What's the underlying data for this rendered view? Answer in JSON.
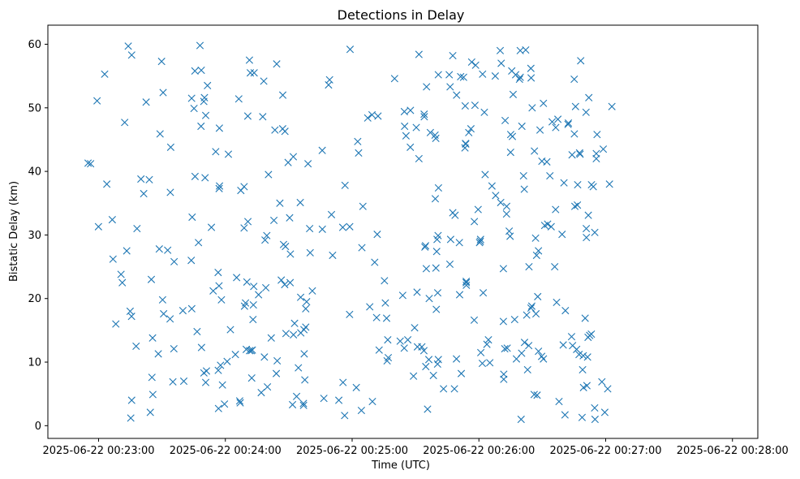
{
  "chart_data": {
    "type": "scatter",
    "title": "Detections in Delay",
    "xlabel": "Time (UTC)",
    "ylabel": "Bistatic Delay (km)",
    "marker": "x",
    "color": "#1f77b4",
    "xlim_minutes": [
      22.6,
      28.2
    ],
    "ylim": [
      -2,
      63
    ],
    "x_ticks": [
      {
        "value": 23,
        "label": "2025-06-22 00:23:00"
      },
      {
        "value": 24,
        "label": "2025-06-22 00:24:00"
      },
      {
        "value": 25,
        "label": "2025-06-22 00:25:00"
      },
      {
        "value": 26,
        "label": "2025-06-22 00:26:00"
      },
      {
        "value": 27,
        "label": "2025-06-22 00:27:00"
      },
      {
        "value": 28,
        "label": "2025-06-22 00:28:00"
      }
    ],
    "y_ticks": [
      0,
      10,
      20,
      30,
      40,
      50,
      60
    ],
    "x_unit_note": "x values are minutes past 00:00 UTC on 2025-06-22",
    "points": [
      [
        22.917,
        41.3
      ],
      [
        22.937,
        41.2
      ],
      [
        22.988,
        51.1
      ],
      [
        22.999,
        31.3
      ],
      [
        23.048,
        55.3
      ],
      [
        23.065,
        38.0
      ],
      [
        23.108,
        32.4
      ],
      [
        23.114,
        26.2
      ],
      [
        23.136,
        16.0
      ],
      [
        23.177,
        23.8
      ],
      [
        23.187,
        22.5
      ],
      [
        23.206,
        47.7
      ],
      [
        23.222,
        27.5
      ],
      [
        23.249,
        18.0
      ],
      [
        23.26,
        17.2
      ],
      [
        23.234,
        59.7
      ],
      [
        23.261,
        58.3
      ],
      [
        23.261,
        4.0
      ],
      [
        23.254,
        1.2
      ],
      [
        23.303,
        31.0
      ],
      [
        23.296,
        12.5
      ],
      [
        23.334,
        38.8
      ],
      [
        23.356,
        36.5
      ],
      [
        23.375,
        50.9
      ],
      [
        23.4,
        38.7
      ],
      [
        23.416,
        23.0
      ],
      [
        23.408,
        2.1
      ],
      [
        23.426,
        13.8
      ],
      [
        23.421,
        7.6
      ],
      [
        23.428,
        4.9
      ],
      [
        23.471,
        11.3
      ],
      [
        23.485,
        45.9
      ],
      [
        23.479,
        27.8
      ],
      [
        23.505,
        19.8
      ],
      [
        23.509,
        52.4
      ],
      [
        23.513,
        17.6
      ],
      [
        23.497,
        57.3
      ],
      [
        23.545,
        27.6
      ],
      [
        23.564,
        16.8
      ],
      [
        23.569,
        43.8
      ],
      [
        23.566,
        36.7
      ],
      [
        23.596,
        25.8
      ],
      [
        23.594,
        12.1
      ],
      [
        23.586,
        6.9
      ],
      [
        23.665,
        18.1
      ],
      [
        23.672,
        7.0
      ],
      [
        23.734,
        51.5
      ],
      [
        23.735,
        18.4
      ],
      [
        23.738,
        32.8
      ],
      [
        23.731,
        26.0
      ],
      [
        23.76,
        55.8
      ],
      [
        23.753,
        49.9
      ],
      [
        23.761,
        39.2
      ],
      [
        23.788,
        28.8
      ],
      [
        23.777,
        14.8
      ],
      [
        23.81,
        55.9
      ],
      [
        23.808,
        47.1
      ],
      [
        23.812,
        12.3
      ],
      [
        23.8,
        59.8
      ],
      [
        23.835,
        51.6
      ],
      [
        23.83,
        51.0
      ],
      [
        23.845,
        48.8
      ],
      [
        23.84,
        39.0
      ],
      [
        23.831,
        8.3
      ],
      [
        23.851,
        8.6
      ],
      [
        23.859,
        53.5
      ],
      [
        23.845,
        6.8
      ],
      [
        23.89,
        31.2
      ],
      [
        23.904,
        21.2
      ],
      [
        23.924,
        43.1
      ],
      [
        23.943,
        24.1
      ],
      [
        23.95,
        22.0
      ],
      [
        23.953,
        46.8
      ],
      [
        23.951,
        37.3
      ],
      [
        23.954,
        37.7
      ],
      [
        23.944,
        8.7
      ],
      [
        23.946,
        2.7
      ],
      [
        23.962,
        9.5
      ],
      [
        23.969,
        19.8
      ],
      [
        23.977,
        6.4
      ],
      [
        23.993,
        3.4
      ],
      [
        24.014,
        10.1
      ],
      [
        24.024,
        42.7
      ],
      [
        24.04,
        15.1
      ],
      [
        24.079,
        11.2
      ],
      [
        24.089,
        23.3
      ],
      [
        24.106,
        51.4
      ],
      [
        24.122,
        37.0
      ],
      [
        24.113,
        3.9
      ],
      [
        24.117,
        3.6
      ],
      [
        24.148,
        37.6
      ],
      [
        24.148,
        31.1
      ],
      [
        24.159,
        19.3
      ],
      [
        24.151,
        18.8
      ],
      [
        24.17,
        22.6
      ],
      [
        24.165,
        12.0
      ],
      [
        24.177,
        48.7
      ],
      [
        24.178,
        32.1
      ],
      [
        24.197,
        55.5
      ],
      [
        24.19,
        57.5
      ],
      [
        24.191,
        11.8
      ],
      [
        24.204,
        11.8
      ],
      [
        24.208,
        7.5
      ],
      [
        24.227,
        55.5
      ],
      [
        24.224,
        21.9
      ],
      [
        24.221,
        19.0
      ],
      [
        24.218,
        16.7
      ],
      [
        24.213,
        11.9
      ],
      [
        24.262,
        20.6
      ],
      [
        24.283,
        5.2
      ],
      [
        24.295,
        48.6
      ],
      [
        24.303,
        54.2
      ],
      [
        24.313,
        29.2
      ],
      [
        24.308,
        10.8
      ],
      [
        24.327,
        29.9
      ],
      [
        24.319,
        21.7
      ],
      [
        24.332,
        6.1
      ],
      [
        24.34,
        39.5
      ],
      [
        24.362,
        13.8
      ],
      [
        24.391,
        46.5
      ],
      [
        24.383,
        32.3
      ],
      [
        24.405,
        56.9
      ],
      [
        24.409,
        10.2
      ],
      [
        24.402,
        8.2
      ],
      [
        24.43,
        35.0
      ],
      [
        24.441,
        22.9
      ],
      [
        24.453,
        52.0
      ],
      [
        24.452,
        46.7
      ],
      [
        24.47,
        46.3
      ],
      [
        24.459,
        28.5
      ],
      [
        24.474,
        28.2
      ],
      [
        24.468,
        22.2
      ],
      [
        24.478,
        14.5
      ],
      [
        24.495,
        41.4
      ],
      [
        24.507,
        32.7
      ],
      [
        24.511,
        22.5
      ],
      [
        24.513,
        27.0
      ],
      [
        24.536,
        42.3
      ],
      [
        24.537,
        14.3
      ],
      [
        24.53,
        3.3
      ],
      [
        24.546,
        16.1
      ],
      [
        24.562,
        4.6
      ],
      [
        24.576,
        9.1
      ],
      [
        24.591,
        35.1
      ],
      [
        24.594,
        20.2
      ],
      [
        24.595,
        14.6
      ],
      [
        24.616,
        3.5
      ],
      [
        24.617,
        3.2
      ],
      [
        24.634,
        15.5
      ],
      [
        24.62,
        15.1
      ],
      [
        24.634,
        18.4
      ],
      [
        24.622,
        11.3
      ],
      [
        24.627,
        7.2
      ],
      [
        24.641,
        19.5
      ],
      [
        24.652,
        41.2
      ],
      [
        24.665,
        31.0
      ],
      [
        24.669,
        27.2
      ],
      [
        24.686,
        21.2
      ],
      [
        24.764,
        43.3
      ],
      [
        24.765,
        30.9
      ],
      [
        24.777,
        4.3
      ],
      [
        24.822,
        54.4
      ],
      [
        24.814,
        53.6
      ],
      [
        24.837,
        33.2
      ],
      [
        24.846,
        26.8
      ],
      [
        24.895,
        4.0
      ],
      [
        24.926,
        31.2
      ],
      [
        24.928,
        6.8
      ],
      [
        24.941,
        1.6
      ],
      [
        24.944,
        37.8
      ],
      [
        24.984,
        59.2
      ],
      [
        24.981,
        31.3
      ],
      [
        24.98,
        17.5
      ],
      [
        25.033,
        6.0
      ],
      [
        25.044,
        44.7
      ],
      [
        25.051,
        42.9
      ],
      [
        25.085,
        34.5
      ],
      [
        25.077,
        28.0
      ],
      [
        25.073,
        2.4
      ],
      [
        25.123,
        48.4
      ],
      [
        25.139,
        18.7
      ],
      [
        25.157,
        48.9
      ],
      [
        25.16,
        3.8
      ],
      [
        25.178,
        25.7
      ],
      [
        25.193,
        17.0
      ],
      [
        25.198,
        30.1
      ],
      [
        25.204,
        48.7
      ],
      [
        25.213,
        11.9
      ],
      [
        25.255,
        22.8
      ],
      [
        25.262,
        19.3
      ],
      [
        25.272,
        16.9
      ],
      [
        25.281,
        13.5
      ],
      [
        25.285,
        10.7
      ],
      [
        25.276,
        10.2
      ],
      [
        25.335,
        54.6
      ],
      [
        25.379,
        13.3
      ],
      [
        25.399,
        20.5
      ],
      [
        25.412,
        49.4
      ],
      [
        25.414,
        47.1
      ],
      [
        25.411,
        12.2
      ],
      [
        25.425,
        45.6
      ],
      [
        25.439,
        13.5
      ],
      [
        25.46,
        49.6
      ],
      [
        25.459,
        43.8
      ],
      [
        25.484,
        7.8
      ],
      [
        25.493,
        15.4
      ],
      [
        25.506,
        46.9
      ],
      [
        25.512,
        21.0
      ],
      [
        25.515,
        12.4
      ],
      [
        25.527,
        42.0
      ],
      [
        25.527,
        58.4
      ],
      [
        25.55,
        12.4
      ],
      [
        25.568,
        49.0
      ],
      [
        25.569,
        48.6
      ],
      [
        25.579,
        28.3
      ],
      [
        25.585,
        24.7
      ],
      [
        25.574,
        28.1
      ],
      [
        25.566,
        11.8
      ],
      [
        25.581,
        9.3
      ],
      [
        25.587,
        53.3
      ],
      [
        25.608,
        20.0
      ],
      [
        25.617,
        46.1
      ],
      [
        25.605,
        10.4
      ],
      [
        25.595,
        2.6
      ],
      [
        25.641,
        7.9
      ],
      [
        25.656,
        35.7
      ],
      [
        25.654,
        45.7
      ],
      [
        25.66,
        45.2
      ],
      [
        25.661,
        24.8
      ],
      [
        25.667,
        27.4
      ],
      [
        25.664,
        18.3
      ],
      [
        25.67,
        29.3
      ],
      [
        25.675,
        20.9
      ],
      [
        25.678,
        29.9
      ],
      [
        25.674,
        9.7
      ],
      [
        25.68,
        55.2
      ],
      [
        25.681,
        37.4
      ],
      [
        25.68,
        10.4
      ],
      [
        25.721,
        5.8
      ],
      [
        25.766,
        55.2
      ],
      [
        25.773,
        53.3
      ],
      [
        25.777,
        29.3
      ],
      [
        25.771,
        25.4
      ],
      [
        25.794,
        58.2
      ],
      [
        25.794,
        33.5
      ],
      [
        25.812,
        33.1
      ],
      [
        25.807,
        5.8
      ],
      [
        25.824,
        52.0
      ],
      [
        25.823,
        10.5
      ],
      [
        25.846,
        28.8
      ],
      [
        25.856,
        54.9
      ],
      [
        25.848,
        20.6
      ],
      [
        25.861,
        8.2
      ],
      [
        25.879,
        54.8
      ],
      [
        25.892,
        50.3
      ],
      [
        25.89,
        43.7
      ],
      [
        25.895,
        44.4
      ],
      [
        25.896,
        44.3
      ],
      [
        25.9,
        22.7
      ],
      [
        25.9,
        22.5
      ],
      [
        25.901,
        22.1
      ],
      [
        25.92,
        46.1
      ],
      [
        25.937,
        46.7
      ],
      [
        25.943,
        57.2
      ],
      [
        25.963,
        16.6
      ],
      [
        25.969,
        50.4
      ],
      [
        25.964,
        32.1
      ],
      [
        25.974,
        56.7
      ],
      [
        25.994,
        34.0
      ],
      [
        26.005,
        28.8
      ],
      [
        26.011,
        29.0
      ],
      [
        26.013,
        29.3
      ],
      [
        26.015,
        11.5
      ],
      [
        26.027,
        9.8
      ],
      [
        26.034,
        20.9
      ],
      [
        26.043,
        49.3
      ],
      [
        26.029,
        55.3
      ],
      [
        26.049,
        39.5
      ],
      [
        26.063,
        12.8
      ],
      [
        26.075,
        13.5
      ],
      [
        26.086,
        9.9
      ],
      [
        26.103,
        37.7
      ],
      [
        26.132,
        36.2
      ],
      [
        26.172,
        35.1
      ],
      [
        26.129,
        55.0
      ],
      [
        26.168,
        59.0
      ],
      [
        26.176,
        57.0
      ],
      [
        26.193,
        24.7
      ],
      [
        26.193,
        16.4
      ],
      [
        26.196,
        8.1
      ],
      [
        26.196,
        7.3
      ],
      [
        26.204,
        12.1
      ],
      [
        26.207,
        48.0
      ],
      [
        26.218,
        33.3
      ],
      [
        26.219,
        34.5
      ],
      [
        26.223,
        12.2
      ],
      [
        26.239,
        30.6
      ],
      [
        26.246,
        29.8
      ],
      [
        26.251,
        45.8
      ],
      [
        26.25,
        43.0
      ],
      [
        26.259,
        55.8
      ],
      [
        26.264,
        45.5
      ],
      [
        26.27,
        52.1
      ],
      [
        26.282,
        16.7
      ],
      [
        26.29,
        55.2
      ],
      [
        26.296,
        10.5
      ],
      [
        26.32,
        54.5
      ],
      [
        26.326,
        54.8
      ],
      [
        26.326,
        59.0
      ],
      [
        26.339,
        47.1
      ],
      [
        26.337,
        11.4
      ],
      [
        26.333,
        1.0
      ],
      [
        26.352,
        39.3
      ],
      [
        26.36,
        13.1
      ],
      [
        26.369,
        59.1
      ],
      [
        26.358,
        37.2
      ],
      [
        26.377,
        17.4
      ],
      [
        26.384,
        8.8
      ],
      [
        26.395,
        25.0
      ],
      [
        26.393,
        12.6
      ],
      [
        26.411,
        18.5
      ],
      [
        26.41,
        56.2
      ],
      [
        26.417,
        18.8
      ],
      [
        26.42,
        50.0
      ],
      [
        26.412,
        54.7
      ],
      [
        26.436,
        4.9
      ],
      [
        26.438,
        43.2
      ],
      [
        26.447,
        29.5
      ],
      [
        26.45,
        17.6
      ],
      [
        26.455,
        26.8
      ],
      [
        26.459,
        4.8
      ],
      [
        26.464,
        20.3
      ],
      [
        26.47,
        11.7
      ],
      [
        26.47,
        27.5
      ],
      [
        26.482,
        46.5
      ],
      [
        26.495,
        10.9
      ],
      [
        26.497,
        41.6
      ],
      [
        26.509,
        50.7
      ],
      [
        26.509,
        10.5
      ],
      [
        26.519,
        31.5
      ],
      [
        26.536,
        41.5
      ],
      [
        26.542,
        31.7
      ],
      [
        26.56,
        39.3
      ],
      [
        26.57,
        31.3
      ],
      [
        26.578,
        47.8
      ],
      [
        26.598,
        25.0
      ],
      [
        26.605,
        34.0
      ],
      [
        26.613,
        19.4
      ],
      [
        26.606,
        46.9
      ],
      [
        26.623,
        48.2
      ],
      [
        26.632,
        3.8
      ],
      [
        26.656,
        30.1
      ],
      [
        26.665,
        12.7
      ],
      [
        26.671,
        38.2
      ],
      [
        26.682,
        18.1
      ],
      [
        26.679,
        1.7
      ],
      [
        26.703,
        47.4
      ],
      [
        26.706,
        47.6
      ],
      [
        26.735,
        42.6
      ],
      [
        26.731,
        14.0
      ],
      [
        26.739,
        12.6
      ],
      [
        26.752,
        54.5
      ],
      [
        26.762,
        50.2
      ],
      [
        26.757,
        34.5
      ],
      [
        26.753,
        45.9
      ],
      [
        26.771,
        12.0
      ],
      [
        26.777,
        34.7
      ],
      [
        26.779,
        37.9
      ],
      [
        26.79,
        11.2
      ],
      [
        26.794,
        42.9
      ],
      [
        26.798,
        42.7
      ],
      [
        26.803,
        57.4
      ],
      [
        26.818,
        8.8
      ],
      [
        26.823,
        11.0
      ],
      [
        26.814,
        1.3
      ],
      [
        26.825,
        6.0
      ],
      [
        26.838,
        16.9
      ],
      [
        26.845,
        49.3
      ],
      [
        26.847,
        31.0
      ],
      [
        26.848,
        29.6
      ],
      [
        26.861,
        13.9
      ],
      [
        26.857,
        10.8
      ],
      [
        26.852,
        6.3
      ],
      [
        26.867,
        51.6
      ],
      [
        26.863,
        33.1
      ],
      [
        26.874,
        14.2
      ],
      [
        26.887,
        14.4
      ],
      [
        26.888,
        37.9
      ],
      [
        26.902,
        37.6
      ],
      [
        26.914,
        30.4
      ],
      [
        26.913,
        2.8
      ],
      [
        26.916,
        1.0
      ],
      [
        26.926,
        42.8
      ],
      [
        26.932,
        45.8
      ],
      [
        26.926,
        42.0
      ],
      [
        26.97,
        6.9
      ],
      [
        26.981,
        43.5
      ],
      [
        26.993,
        2.1
      ],
      [
        27.016,
        5.8
      ],
      [
        27.03,
        38.0
      ],
      [
        27.049,
        50.2
      ]
    ]
  }
}
